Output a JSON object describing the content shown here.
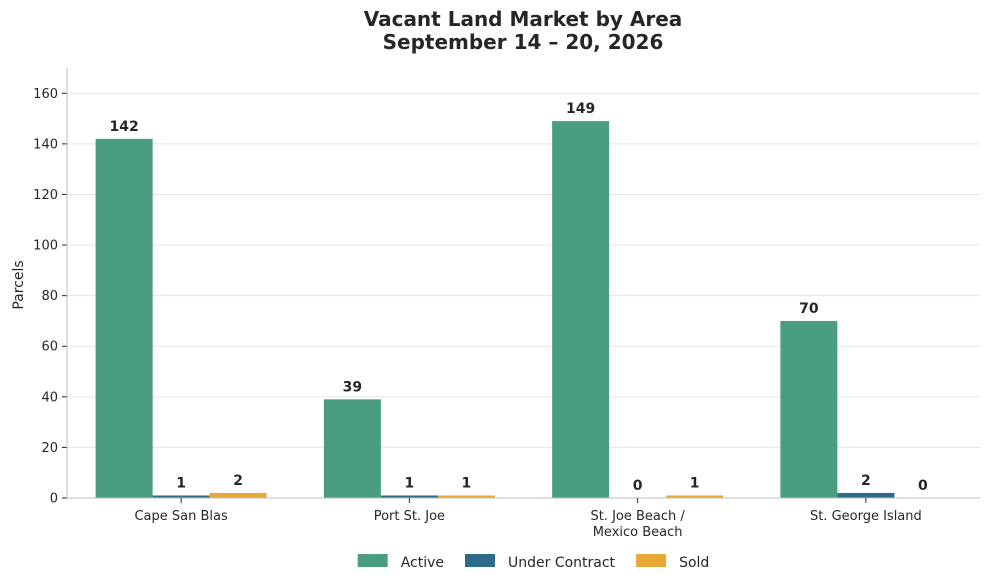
{
  "chart_data": {
    "type": "bar",
    "title": "Vacant Land Market by Area",
    "subtitle": "September 14 – 20, 2026",
    "xlabel": "",
    "ylabel": "Parcels",
    "ylim": [
      0,
      170
    ],
    "yticks": [
      0,
      20,
      40,
      60,
      80,
      100,
      120,
      140,
      160
    ],
    "grid": true,
    "legend_position": "bottom",
    "categories": [
      [
        "Cape San Blas"
      ],
      [
        "Port St. Joe"
      ],
      [
        "St. Joe Beach /",
        "Mexico Beach"
      ],
      [
        "St. George Island"
      ]
    ],
    "series": [
      {
        "name": "Active",
        "color": "#4a9d7f",
        "values": [
          142,
          39,
          149,
          70
        ]
      },
      {
        "name": "Under Contract",
        "color": "#2e6a8a",
        "values": [
          1,
          1,
          0,
          2
        ]
      },
      {
        "name": "Sold",
        "color": "#e8a838",
        "values": [
          2,
          1,
          1,
          0
        ]
      }
    ]
  }
}
